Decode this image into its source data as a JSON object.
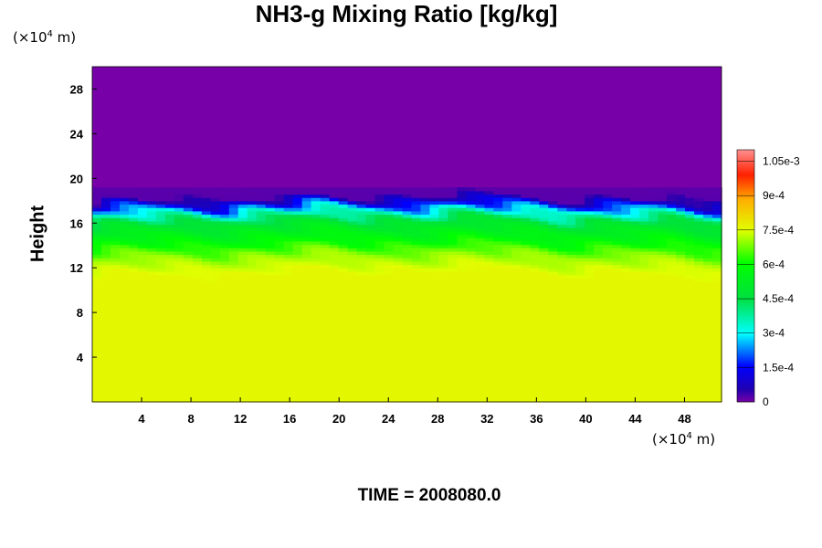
{
  "chart_data": {
    "type": "heatmap",
    "title": "NH3-g Mixing Ratio [kg/kg]",
    "ylabel": "Height",
    "x_unit": "(×10⁴ m)",
    "y_unit": "(×10⁴ m)",
    "footer": "TIME = 2008080.0",
    "xlim": [
      0,
      51
    ],
    "ylim": [
      0,
      30
    ],
    "x_ticks": [
      4,
      8,
      12,
      16,
      20,
      24,
      28,
      32,
      36,
      40,
      44,
      48
    ],
    "y_ticks": [
      4,
      8,
      12,
      16,
      20,
      24,
      28
    ],
    "colorbar": {
      "range": [
        0,
        0.0011
      ],
      "tick_values": [
        0,
        0.00015,
        0.0003,
        0.00045,
        0.0006,
        0.00075,
        0.0009,
        0.00105
      ],
      "tick_labels": [
        "0",
        "1.5e-4",
        "3e-4",
        "4.5e-4",
        "6e-4",
        "7.5e-4",
        "9e-4",
        "1.05e-3"
      ]
    },
    "profile": [
      {
        "height": 0,
        "value": 0.00076
      },
      {
        "height": 11,
        "value": 0.00076
      },
      {
        "height": 12.5,
        "value": 0.0007
      },
      {
        "height": 14,
        "value": 0.00058
      },
      {
        "height": 15.5,
        "value": 0.00048
      },
      {
        "height": 16.5,
        "value": 0.00032
      },
      {
        "height": 17.3,
        "value": 0.00012
      },
      {
        "height": 17.8,
        "value": 2e-05
      },
      {
        "height": 30,
        "value": 0.0
      }
    ],
    "colors": {
      "background_top": "#7800a8",
      "lower_layer": "#e0ff00"
    }
  }
}
